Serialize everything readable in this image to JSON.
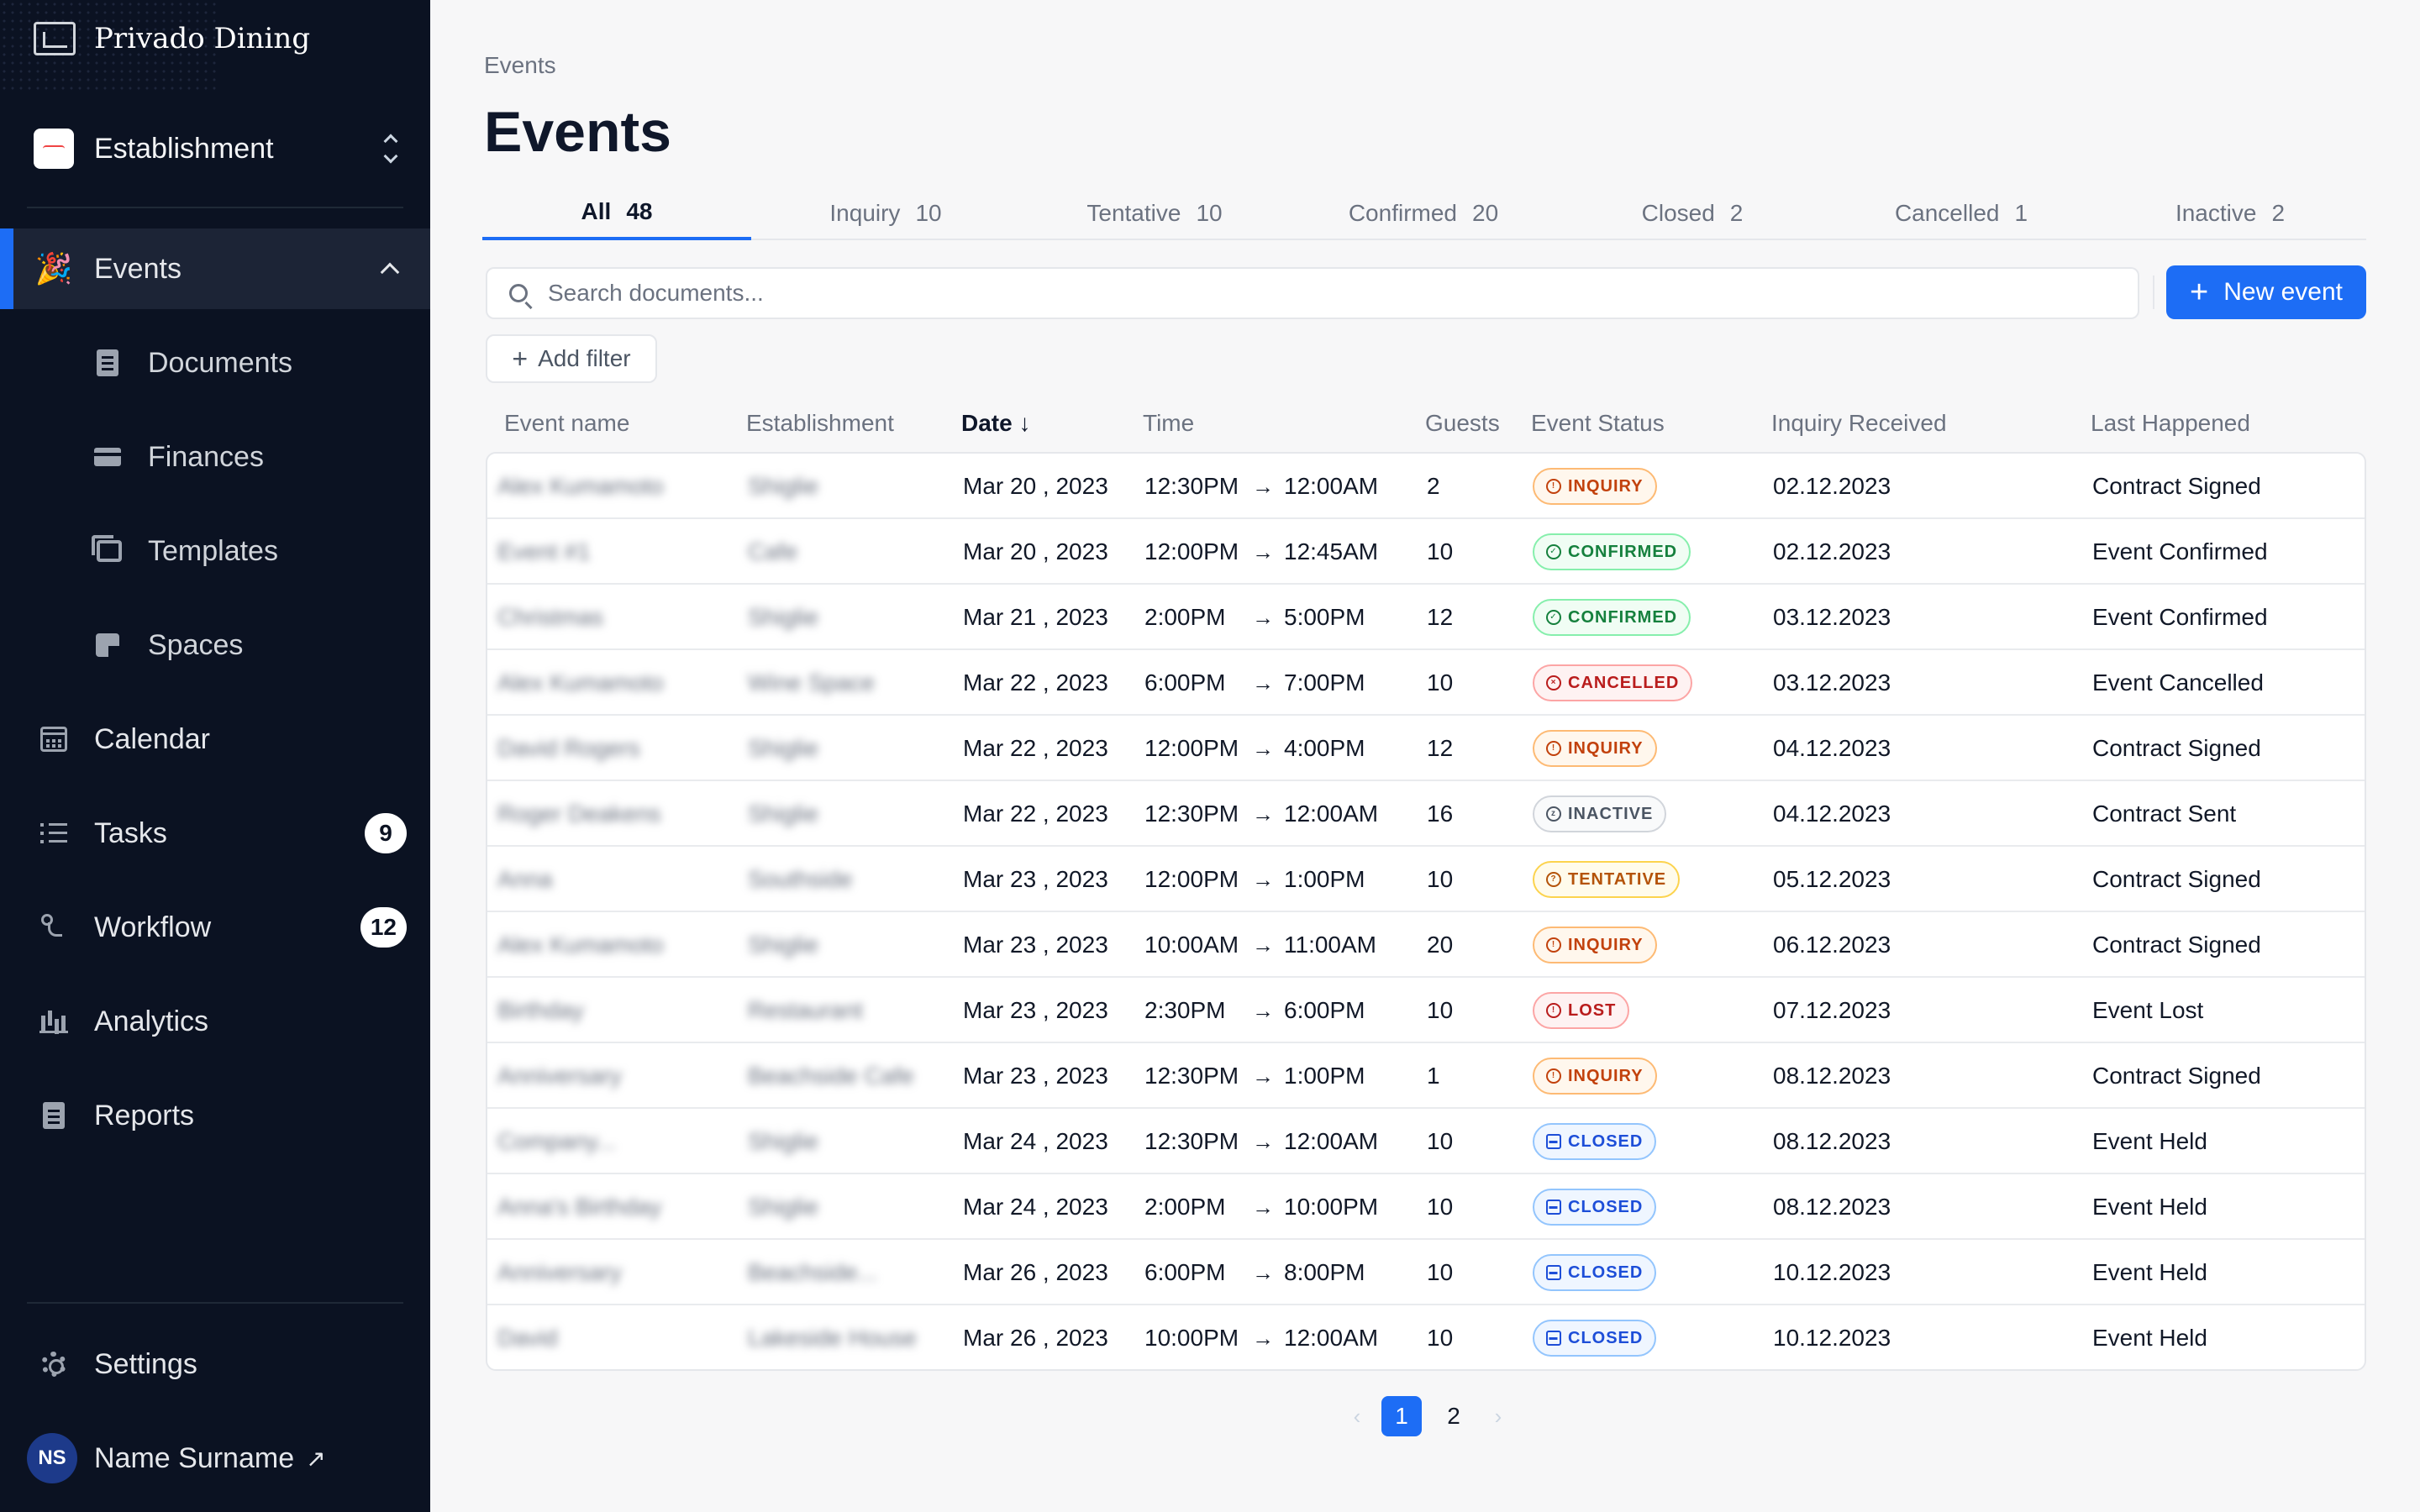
{
  "app": {
    "brand": "Privado Dining"
  },
  "sidebar": {
    "establishment": {
      "label": "Establishment"
    },
    "events": {
      "label": "Events"
    },
    "sub_items": [
      {
        "label": "Documents",
        "icon": "document-icon"
      },
      {
        "label": "Finances",
        "icon": "credit-card-icon"
      },
      {
        "label": "Templates",
        "icon": "templates-icon"
      },
      {
        "label": "Spaces",
        "icon": "spaces-icon"
      }
    ],
    "items": [
      {
        "label": "Calendar",
        "icon": "calendar-icon"
      },
      {
        "label": "Tasks",
        "icon": "list-icon",
        "badge": "9"
      },
      {
        "label": "Workflow",
        "icon": "workflow-icon",
        "badge": "12"
      },
      {
        "label": "Analytics",
        "icon": "bar-chart-icon"
      },
      {
        "label": "Reports",
        "icon": "report-icon"
      }
    ],
    "settings": {
      "label": "Settings"
    },
    "user": {
      "initials": "NS",
      "name": "Name Surname"
    }
  },
  "header": {
    "breadcrumb": "Events",
    "title": "Events"
  },
  "tabs": [
    {
      "label": "All",
      "count": "48"
    },
    {
      "label": "Inquiry",
      "count": "10"
    },
    {
      "label": "Tentative",
      "count": "10"
    },
    {
      "label": "Confirmed",
      "count": "20"
    },
    {
      "label": "Closed",
      "count": "2"
    },
    {
      "label": "Cancelled",
      "count": "1"
    },
    {
      "label": "Inactive",
      "count": "2"
    }
  ],
  "search": {
    "placeholder": "Search documents..."
  },
  "actions": {
    "new_event": "New event",
    "add_filter": "Add filter"
  },
  "table": {
    "columns": [
      "Event name",
      "Establishment",
      "Date",
      "Time",
      "Guests",
      "Event Status",
      "Inquiry Received",
      "Last Happened"
    ],
    "sort_indicator": "↓",
    "rows": [
      {
        "name": "Alex Kumamoto",
        "establishment": "Shiglie",
        "date": "Mar 20 , 2023",
        "start": "12:30PM",
        "end": "12:00AM",
        "guests": "2",
        "status": "INQUIRY",
        "inquiry": "02.12.2023",
        "last": "Contract Signed"
      },
      {
        "name": "Event #1",
        "establishment": "Cafe",
        "date": "Mar 20 , 2023",
        "start": "12:00PM",
        "end": "12:45AM",
        "guests": "10",
        "status": "CONFIRMED",
        "inquiry": "02.12.2023",
        "last": "Event Confirmed"
      },
      {
        "name": "Christmas",
        "establishment": "Shiglie",
        "date": "Mar 21 , 2023",
        "start": "2:00PM",
        "end": "5:00PM",
        "guests": "12",
        "status": "CONFIRMED",
        "inquiry": "03.12.2023",
        "last": "Event Confirmed"
      },
      {
        "name": "Alex Kumamoto",
        "establishment": "Wine Space",
        "date": "Mar 22 , 2023",
        "start": "6:00PM",
        "end": "7:00PM",
        "guests": "10",
        "status": "CANCELLED",
        "inquiry": "03.12.2023",
        "last": "Event Cancelled"
      },
      {
        "name": "David Rogers",
        "establishment": "Shiglie",
        "date": "Mar 22 , 2023",
        "start": "12:00PM",
        "end": "4:00PM",
        "guests": "12",
        "status": "INQUIRY",
        "inquiry": "04.12.2023",
        "last": "Contract Signed"
      },
      {
        "name": "Roger Deakens",
        "establishment": "Shiglie",
        "date": "Mar 22 , 2023",
        "start": "12:30PM",
        "end": "12:00AM",
        "guests": "16",
        "status": "INACTIVE",
        "inquiry": "04.12.2023",
        "last": "Contract Sent"
      },
      {
        "name": "Anna",
        "establishment": "Southside",
        "date": "Mar 23 , 2023",
        "start": "12:00PM",
        "end": "1:00PM",
        "guests": "10",
        "status": "TENTATIVE",
        "inquiry": "05.12.2023",
        "last": "Contract Signed"
      },
      {
        "name": "Alex Kumamoto",
        "establishment": "Shiglie",
        "date": "Mar 23 , 2023",
        "start": "10:00AM",
        "end": "11:00AM",
        "guests": "20",
        "status": "INQUIRY",
        "inquiry": "06.12.2023",
        "last": "Contract Signed"
      },
      {
        "name": "Birthday",
        "establishment": "Restaurant",
        "date": "Mar 23 , 2023",
        "start": "2:30PM",
        "end": "6:00PM",
        "guests": "10",
        "status": "LOST",
        "inquiry": "07.12.2023",
        "last": "Event Lost"
      },
      {
        "name": "Anniversary",
        "establishment": "Beachside Cafe",
        "date": "Mar 23 , 2023",
        "start": "12:30PM",
        "end": "1:00PM",
        "guests": "1",
        "status": "INQUIRY",
        "inquiry": "08.12.2023",
        "last": "Contract Signed"
      },
      {
        "name": "Company...",
        "establishment": "Shiglie",
        "date": "Mar 24 , 2023",
        "start": "12:30PM",
        "end": "12:00AM",
        "guests": "10",
        "status": "CLOSED",
        "inquiry": "08.12.2023",
        "last": "Event Held"
      },
      {
        "name": "Anna's Birthday",
        "establishment": "Shiglie",
        "date": "Mar 24 , 2023",
        "start": "2:00PM",
        "end": "10:00PM",
        "guests": "10",
        "status": "CLOSED",
        "inquiry": "08.12.2023",
        "last": "Event Held"
      },
      {
        "name": "Anniversary",
        "establishment": "Beachside...",
        "date": "Mar 26 , 2023",
        "start": "6:00PM",
        "end": "8:00PM",
        "guests": "10",
        "status": "CLOSED",
        "inquiry": "10.12.2023",
        "last": "Event Held"
      },
      {
        "name": "David",
        "establishment": "Lakeside House",
        "date": "Mar 26 , 2023",
        "start": "10:00PM",
        "end": "12:00AM",
        "guests": "10",
        "status": "CLOSED",
        "inquiry": "10.12.2023",
        "last": "Event Held"
      }
    ]
  },
  "pagination": {
    "pages": [
      "1",
      "2"
    ],
    "current": "1"
  }
}
